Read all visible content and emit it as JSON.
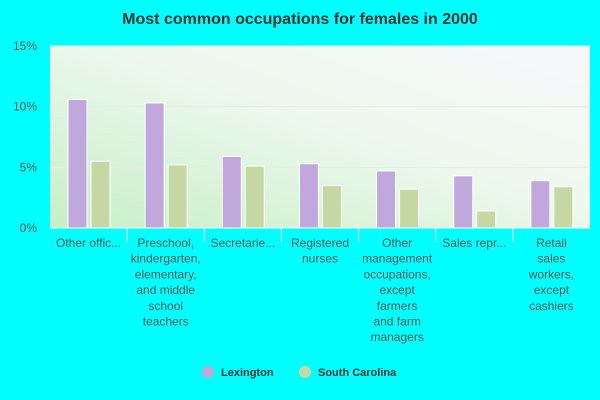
{
  "chart_data": {
    "type": "bar",
    "title": "Most common occupations for females in 2000",
    "xlabel": "",
    "ylabel": "",
    "ylim": [
      0,
      15
    ],
    "yticks": [
      "0%",
      "5%",
      "10%",
      "15%"
    ],
    "ytick_values": [
      0,
      5,
      10,
      15
    ],
    "grid": true,
    "legend_position": "bottom",
    "categories": [
      "Other offic...",
      "Preschool, kindergarten, elementary, and middle school teachers",
      "Secretarie...",
      "Registered nurses",
      "Other management occupations, except farmers and farm managers",
      "Sales repr...",
      "Retail sales workers, except cashiers"
    ],
    "category_lines": [
      [
        "Other offic..."
      ],
      [
        "Preschool,",
        "kindergarten,",
        "elementary,",
        "and middle",
        "school",
        "teachers"
      ],
      [
        "Secretarie..."
      ],
      [
        "Registered",
        "nurses"
      ],
      [
        "Other",
        "management",
        "occupations,",
        "except",
        "farmers",
        "and farm",
        "managers"
      ],
      [
        "Sales repr..."
      ],
      [
        "Retail",
        "sales",
        "workers,",
        "except",
        "cashiers"
      ]
    ],
    "series": [
      {
        "name": "Lexington",
        "color": "#c0a8dc",
        "values": [
          10.6,
          10.3,
          5.9,
          5.3,
          4.7,
          4.3,
          3.9
        ]
      },
      {
        "name": "South Carolina",
        "color": "#c5d8a4",
        "values": [
          5.5,
          5.2,
          5.1,
          3.5,
          3.2,
          1.4,
          3.4
        ]
      }
    ]
  }
}
